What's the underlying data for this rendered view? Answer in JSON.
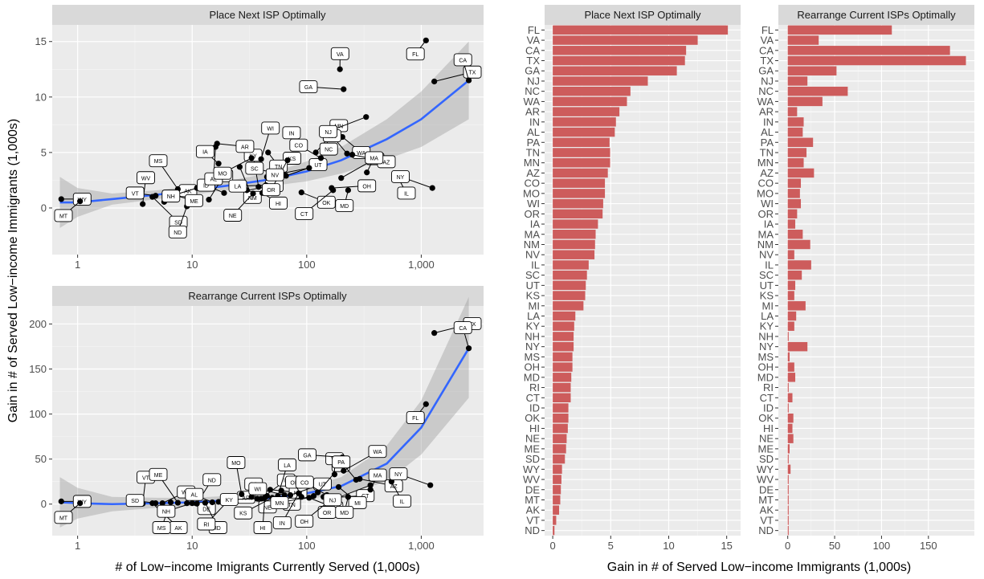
{
  "shared_labels": {
    "scatter_ylabel": "Gain in # of Served Low−income Immigrants (1,000s)",
    "scatter_xlabel": "# of Low−income Imigrants Currently Served (1,000s)",
    "bar_xlabel": "Gain in # of Served Low−income Immigrants (1,000s)"
  },
  "chart_data": [
    {
      "type": "scatter",
      "title": "Place Next ISP Optimally",
      "x_scale": "log10",
      "xlim": [
        0.6,
        3500
      ],
      "ylim": [
        -4.2,
        16.5
      ],
      "x_ticks": [
        1,
        10,
        100,
        1000
      ],
      "x_tick_labels": [
        "1",
        "10",
        "100",
        "1,000"
      ],
      "y_ticks": [
        0,
        5,
        10,
        15
      ],
      "y_tick_labels": [
        "0",
        "5",
        "10",
        "15"
      ],
      "trend_line": {
        "x": [
          0.7,
          1,
          2,
          5,
          10,
          20,
          50,
          100,
          200,
          500,
          1000,
          2600
        ],
        "y": [
          0.5,
          0.5,
          0.8,
          1.2,
          1.6,
          2.0,
          2.6,
          3.3,
          4.3,
          6.2,
          8.0,
          11.5
        ]
      },
      "band_upper": [
        2.8,
        1.8,
        1.3,
        1.6,
        2.0,
        2.4,
        3.2,
        4.2,
        5.5,
        8.0,
        10.5,
        15.0
      ],
      "band_lower": [
        -1.8,
        -0.8,
        0.3,
        0.8,
        1.2,
        1.6,
        2.0,
        2.4,
        3.1,
        4.4,
        5.5,
        8.0
      ],
      "points": [
        {
          "label": "WY",
          "x": 0.72,
          "y": 0.8
        },
        {
          "label": "MT",
          "x": 1.05,
          "y": 0.6
        },
        {
          "label": "WV",
          "x": 3.7,
          "y": 0.35
        },
        {
          "label": "SD",
          "x": 4.5,
          "y": 1.0
        },
        {
          "label": "VT",
          "x": 4.8,
          "y": 1.1
        },
        {
          "label": "AK",
          "x": 5.7,
          "y": 0.55
        },
        {
          "label": "ND",
          "x": 9.0,
          "y": 0.15
        },
        {
          "label": "MS",
          "x": 7.5,
          "y": 1.7
        },
        {
          "label": "ME",
          "x": 7.0,
          "y": 1.15
        },
        {
          "label": "NH",
          "x": 11.0,
          "y": 1.8
        },
        {
          "label": "DE",
          "x": 14.0,
          "y": 0.75
        },
        {
          "label": "NM",
          "x": 26.0,
          "y": 3.7
        },
        {
          "label": "ID",
          "x": 19.0,
          "y": 1.35
        },
        {
          "label": "RI",
          "x": 30.0,
          "y": 1.6
        },
        {
          "label": "NE",
          "x": 34.0,
          "y": 1.3
        },
        {
          "label": "KY",
          "x": 38.0,
          "y": 1.9
        },
        {
          "label": "HI",
          "x": 41.0,
          "y": 1.35
        },
        {
          "label": "LA",
          "x": 44.0,
          "y": 2.05
        },
        {
          "label": "KS",
          "x": 45.0,
          "y": 2.8
        },
        {
          "label": "AL",
          "x": 16.0,
          "y": 5.5
        },
        {
          "label": "IA",
          "x": 17.0,
          "y": 4.0
        },
        {
          "label": "AR",
          "x": 16.5,
          "y": 5.8
        },
        {
          "label": "MO",
          "x": 33.0,
          "y": 4.5
        },
        {
          "label": "WI",
          "x": 40.0,
          "y": 4.4
        },
        {
          "label": "TN",
          "x": 46.0,
          "y": 5.0
        },
        {
          "label": "SC",
          "x": 60.0,
          "y": 3.0
        },
        {
          "label": "UT",
          "x": 66.0,
          "y": 2.9
        },
        {
          "label": "OR",
          "x": 68.0,
          "y": 4.3
        },
        {
          "label": "IN",
          "x": 85.0,
          "y": 5.45
        },
        {
          "label": "OK",
          "x": 90.0,
          "y": 1.4
        },
        {
          "label": "NV",
          "x": 105.0,
          "y": 3.6
        },
        {
          "label": "MN",
          "x": 120.0,
          "y": 5.0
        },
        {
          "label": "NC",
          "x": 145.0,
          "y": 6.7
        },
        {
          "label": "CO",
          "x": 133.0,
          "y": 4.5
        },
        {
          "label": "OH",
          "x": 165.0,
          "y": 1.8
        },
        {
          "label": "CT",
          "x": 170.0,
          "y": 1.6
        },
        {
          "label": "VA",
          "x": 195.0,
          "y": 12.5
        },
        {
          "label": "WA",
          "x": 205.0,
          "y": 6.4
        },
        {
          "label": "GA",
          "x": 210.0,
          "y": 10.7
        },
        {
          "label": "MI",
          "x": 200.0,
          "y": 2.7
        },
        {
          "label": "MD",
          "x": 230.0,
          "y": 1.6
        },
        {
          "label": "PA",
          "x": 225.0,
          "y": 4.9
        },
        {
          "label": "AZ",
          "x": 250.0,
          "y": 4.8
        },
        {
          "label": "NJ",
          "x": 330.0,
          "y": 8.2
        },
        {
          "label": "MA",
          "x": 335.0,
          "y": 3.2
        },
        {
          "label": "IL",
          "x": 600.0,
          "y": 3.1
        },
        {
          "label": "NY",
          "x": 1250.0,
          "y": 1.8
        },
        {
          "label": "TX",
          "x": 1300.0,
          "y": 11.4
        },
        {
          "label": "FL",
          "x": 1100.0,
          "y": 15.1
        },
        {
          "label": "CA",
          "x": 2600.0,
          "y": 11.5
        }
      ]
    },
    {
      "type": "scatter",
      "title": "Rearrange Current ISPs Optimally",
      "x_scale": "log10",
      "xlim": [
        0.6,
        3500
      ],
      "ylim": [
        -35,
        220
      ],
      "x_ticks": [
        1,
        10,
        100,
        1000
      ],
      "x_tick_labels": [
        "1",
        "10",
        "100",
        "1,000"
      ],
      "y_ticks": [
        0,
        50,
        100,
        150,
        200
      ],
      "y_tick_labels": [
        "0",
        "50",
        "100",
        "150",
        "200"
      ],
      "trend_line": {
        "x": [
          0.7,
          1,
          2,
          5,
          10,
          20,
          50,
          100,
          200,
          500,
          1000,
          2600
        ],
        "y": [
          2,
          1,
          0,
          1,
          2,
          4,
          7,
          12,
          20,
          45,
          85,
          173
        ]
      },
      "band_upper": [
        30,
        18,
        8,
        7,
        7,
        9,
        12,
        18,
        30,
        65,
        115,
        230
      ],
      "band_lower": [
        -26,
        -16,
        -8,
        -4,
        -2,
        0,
        3,
        6,
        10,
        25,
        55,
        118
      ],
      "points": [
        {
          "label": "WY",
          "x": 0.72,
          "y": 3
        },
        {
          "label": "MT",
          "x": 1.05,
          "y": 1
        },
        {
          "label": "VT",
          "x": 3.7,
          "y": 0.5
        },
        {
          "label": "AK",
          "x": 4.5,
          "y": 1
        },
        {
          "label": "SD",
          "x": 4.8,
          "y": 1
        },
        {
          "label": "WV",
          "x": 5.5,
          "y": 1
        },
        {
          "label": "MS",
          "x": 6.5,
          "y": 2
        },
        {
          "label": "ME",
          "x": 7.5,
          "y": 1.5
        },
        {
          "label": "DE",
          "x": 9.0,
          "y": 1
        },
        {
          "label": "NH",
          "x": 10.0,
          "y": 1
        },
        {
          "label": "ND",
          "x": 11.0,
          "y": 0.5
        },
        {
          "label": "ID",
          "x": 13.0,
          "y": 1.5
        },
        {
          "label": "AL",
          "x": 15.0,
          "y": 2
        },
        {
          "label": "AR",
          "x": 17.0,
          "y": 2.5
        },
        {
          "label": "RI",
          "x": 20.0,
          "y": 2
        },
        {
          "label": "MO",
          "x": 27.0,
          "y": 11
        },
        {
          "label": "NE",
          "x": 33.0,
          "y": 8
        },
        {
          "label": "KY",
          "x": 37.0,
          "y": 6
        },
        {
          "label": "IA",
          "x": 40.0,
          "y": 6
        },
        {
          "label": "HI",
          "x": 43.0,
          "y": 7
        },
        {
          "label": "SC",
          "x": 45.0,
          "y": 9
        },
        {
          "label": "NM",
          "x": 48.0,
          "y": 16
        },
        {
          "label": "KS",
          "x": 50.0,
          "y": 7
        },
        {
          "label": "LA",
          "x": 56.0,
          "y": 9
        },
        {
          "label": "TN",
          "x": 60.0,
          "y": 15
        },
        {
          "label": "WI",
          "x": 64.0,
          "y": 10
        },
        {
          "label": "UT",
          "x": 72.0,
          "y": 10
        },
        {
          "label": "IN",
          "x": 85.0,
          "y": 12
        },
        {
          "label": "OK",
          "x": 90.0,
          "y": 8
        },
        {
          "label": "NV",
          "x": 105.0,
          "y": 7
        },
        {
          "label": "MN",
          "x": 115.0,
          "y": 9
        },
        {
          "label": "NC",
          "x": 125.0,
          "y": 13
        },
        {
          "label": "OR",
          "x": 140.0,
          "y": 8
        },
        {
          "label": "CO",
          "x": 150.0,
          "y": 10
        },
        {
          "label": "CT",
          "x": 160.0,
          "y": 7
        },
        {
          "label": "OH",
          "x": 170.0,
          "y": 7
        },
        {
          "label": "VA",
          "x": 175.0,
          "y": 33
        },
        {
          "label": "MI",
          "x": 190.0,
          "y": 19
        },
        {
          "label": "GA",
          "x": 205.0,
          "y": 52
        },
        {
          "label": "WA",
          "x": 210.0,
          "y": 37
        },
        {
          "label": "MD",
          "x": 230.0,
          "y": 8
        },
        {
          "label": "PA",
          "x": 270.0,
          "y": 27
        },
        {
          "label": "AZ",
          "x": 290.0,
          "y": 28
        },
        {
          "label": "NJ",
          "x": 360.0,
          "y": 21
        },
        {
          "label": "MA",
          "x": 360.0,
          "y": 16
        },
        {
          "label": "IL",
          "x": 550.0,
          "y": 25
        },
        {
          "label": "NY",
          "x": 1200.0,
          "y": 21
        },
        {
          "label": "TX",
          "x": 1300.0,
          "y": 190
        },
        {
          "label": "FL",
          "x": 1100.0,
          "y": 111
        },
        {
          "label": "CA",
          "x": 2600.0,
          "y": 173
        }
      ]
    },
    {
      "type": "bar",
      "orientation": "horizontal",
      "title": "Place Next ISP Optimally",
      "xlim": [
        -0.7,
        16.2
      ],
      "x_ticks": [
        0,
        5,
        10,
        15
      ],
      "x_tick_labels": [
        "0",
        "5",
        "10",
        "15"
      ],
      "categories": [
        "FL",
        "VA",
        "CA",
        "TX",
        "GA",
        "NJ",
        "NC",
        "WA",
        "AR",
        "IN",
        "AL",
        "PA",
        "TN",
        "MN",
        "AZ",
        "CO",
        "MO",
        "WI",
        "OR",
        "IA",
        "MA",
        "NM",
        "NV",
        "IL",
        "SC",
        "UT",
        "KS",
        "MI",
        "LA",
        "KY",
        "NH",
        "NY",
        "MS",
        "OH",
        "MD",
        "RI",
        "CT",
        "ID",
        "OK",
        "HI",
        "NE",
        "ME",
        "SD",
        "WY",
        "WV",
        "DE",
        "MT",
        "AK",
        "VT",
        "ND"
      ],
      "values": [
        15.1,
        12.5,
        11.5,
        11.4,
        10.7,
        8.2,
        6.7,
        6.4,
        5.75,
        5.45,
        5.35,
        4.9,
        4.95,
        4.95,
        4.75,
        4.5,
        4.5,
        4.35,
        4.3,
        3.9,
        3.7,
        3.65,
        3.6,
        3.1,
        2.95,
        2.85,
        2.8,
        2.65,
        1.95,
        1.85,
        1.8,
        1.8,
        1.7,
        1.7,
        1.6,
        1.55,
        1.55,
        1.35,
        1.35,
        1.3,
        1.2,
        1.15,
        1.05,
        0.8,
        0.75,
        0.7,
        0.65,
        0.55,
        0.3,
        0.15
      ]
    },
    {
      "type": "bar",
      "orientation": "horizontal",
      "title": "Rearrange Current ISPs Optimally",
      "xlim": [
        -10,
        199
      ],
      "x_ticks": [
        0,
        50,
        100,
        150
      ],
      "x_tick_labels": [
        "0",
        "50",
        "100",
        "150"
      ],
      "categories": [
        "FL",
        "VA",
        "CA",
        "TX",
        "GA",
        "NJ",
        "NC",
        "WA",
        "AR",
        "IN",
        "AL",
        "PA",
        "TN",
        "MN",
        "AZ",
        "CO",
        "MO",
        "WI",
        "OR",
        "IA",
        "MA",
        "NM",
        "NV",
        "IL",
        "SC",
        "UT",
        "KS",
        "MI",
        "LA",
        "KY",
        "NH",
        "NY",
        "MS",
        "OH",
        "MD",
        "RI",
        "CT",
        "ID",
        "OK",
        "HI",
        "NE",
        "ME",
        "SD",
        "WY",
        "WV",
        "DE",
        "MT",
        "AK",
        "VT",
        "ND"
      ],
      "values": [
        111,
        33,
        173,
        190,
        52,
        21,
        64,
        37,
        10,
        17,
        16,
        27,
        20,
        17,
        28,
        14,
        13,
        14,
        10,
        8,
        16,
        24,
        7,
        25,
        15,
        8,
        7,
        19,
        9,
        7,
        1,
        21,
        2,
        7,
        8,
        1,
        5,
        1,
        6,
        5,
        6,
        2,
        1,
        3,
        1,
        1,
        1,
        1,
        1,
        1
      ]
    }
  ]
}
